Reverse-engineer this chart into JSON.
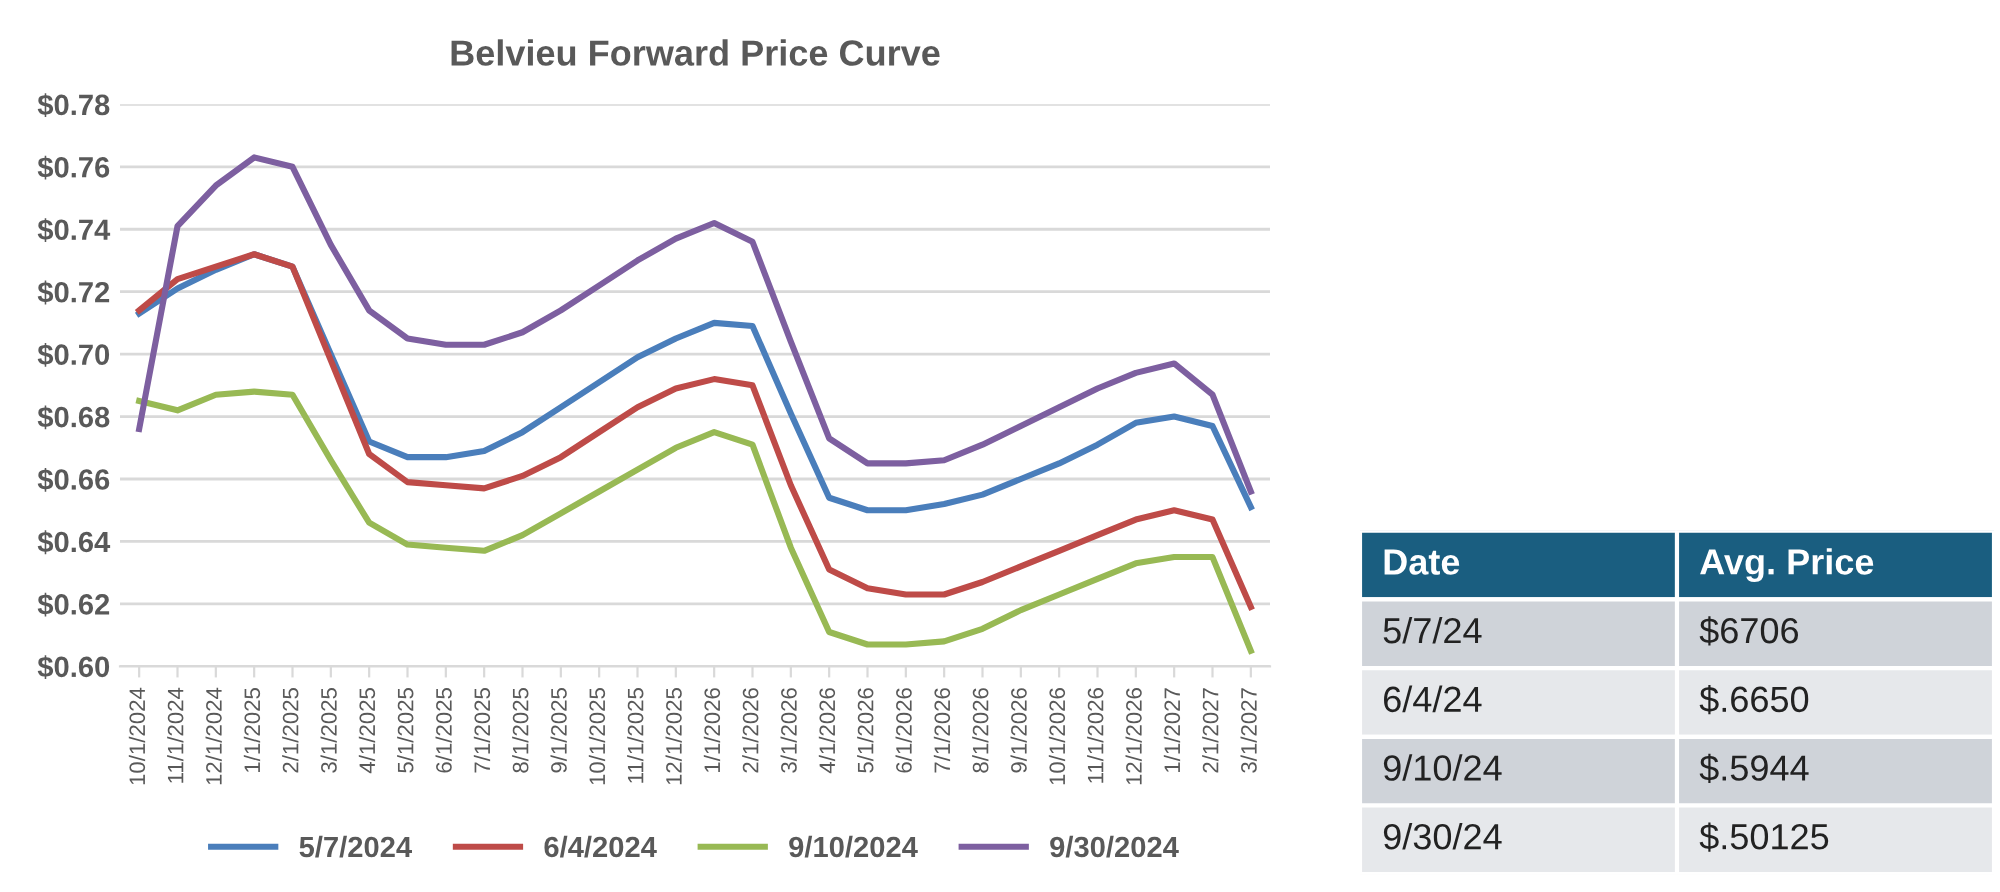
{
  "chart_data": [
    {
      "type": "line",
      "title": "Belvieu Forward Price Curve",
      "categories": [
        "10/1/2024",
        "11/1/2024",
        "12/1/2024",
        "1/1/2025",
        "2/1/2025",
        "3/1/2025",
        "4/1/2025",
        "5/1/2025",
        "6/1/2025",
        "7/1/2025",
        "8/1/2025",
        "9/1/2025",
        "10/1/2025",
        "11/1/2025",
        "12/1/2025",
        "1/1/2026",
        "2/1/2026",
        "3/1/2026",
        "4/1/2026",
        "5/1/2026",
        "6/1/2026",
        "7/1/2026",
        "8/1/2026",
        "9/1/2026",
        "10/1/2026",
        "11/1/2026",
        "12/1/2026",
        "1/1/2027",
        "2/1/2027",
        "3/1/2027"
      ],
      "series": [
        {
          "name": "5/7/2024",
          "color": "#4a7ebb",
          "values": [
            0.713,
            0.721,
            0.727,
            0.732,
            0.728,
            0.7,
            0.672,
            0.667,
            0.667,
            0.669,
            0.675,
            0.683,
            0.691,
            0.699,
            0.705,
            0.71,
            0.709,
            0.681,
            0.654,
            0.65,
            0.65,
            0.652,
            0.655,
            0.66,
            0.665,
            0.671,
            0.678,
            0.68,
            0.677,
            0.651
          ]
        },
        {
          "name": "6/4/2024",
          "color": "#be4b48",
          "values": [
            0.714,
            0.724,
            0.728,
            0.732,
            0.728,
            0.698,
            0.668,
            0.659,
            0.658,
            0.657,
            0.661,
            0.667,
            0.675,
            0.683,
            0.689,
            0.692,
            0.69,
            0.658,
            0.631,
            0.625,
            0.623,
            0.623,
            0.627,
            0.632,
            0.637,
            0.642,
            0.647,
            0.65,
            0.647,
            0.619
          ]
        },
        {
          "name": "9/10/2024",
          "color": "#98b954",
          "values": [
            0.685,
            0.682,
            0.687,
            0.688,
            0.687,
            0.666,
            0.646,
            0.639,
            0.638,
            0.637,
            0.642,
            0.649,
            0.656,
            0.663,
            0.67,
            0.675,
            0.671,
            0.638,
            0.611,
            0.607,
            0.607,
            0.608,
            0.612,
            0.618,
            0.623,
            0.628,
            0.633,
            0.635,
            0.635,
            0.605
          ]
        },
        {
          "name": "9/30/2024",
          "color": "#7d5fa0",
          "values": [
            0.676,
            0.741,
            0.754,
            0.763,
            0.76,
            0.735,
            0.714,
            0.705,
            0.703,
            0.703,
            0.707,
            0.714,
            0.722,
            0.73,
            0.737,
            0.742,
            0.736,
            0.704,
            0.673,
            0.665,
            0.665,
            0.666,
            0.671,
            0.677,
            0.683,
            0.689,
            0.694,
            0.697,
            0.687,
            0.656
          ]
        }
      ],
      "ylim": [
        0.6,
        0.78
      ],
      "yticks": [
        {
          "value": 0.6,
          "label": "$0.60"
        },
        {
          "value": 0.62,
          "label": "$0.62"
        },
        {
          "value": 0.64,
          "label": "$0.64"
        },
        {
          "value": 0.66,
          "label": "$0.66"
        },
        {
          "value": 0.68,
          "label": "$0.68"
        },
        {
          "value": 0.7,
          "label": "$0.70"
        },
        {
          "value": 0.72,
          "label": "$0.72"
        },
        {
          "value": 0.74,
          "label": "$0.74"
        },
        {
          "value": 0.76,
          "label": "$0.76"
        },
        {
          "value": 0.78,
          "label": "$0.78"
        }
      ],
      "grid": "y",
      "legend": "bottom",
      "marker": "none",
      "line_style": "solid"
    },
    {
      "type": "other",
      "annotations": [
        "Date",
        "Avg. Price",
        "5/7/24",
        "$6706",
        "6/4/24",
        "$.6650",
        "9/10/24",
        "$.5944",
        "9/30/24",
        "$.50125"
      ]
    }
  ]
}
